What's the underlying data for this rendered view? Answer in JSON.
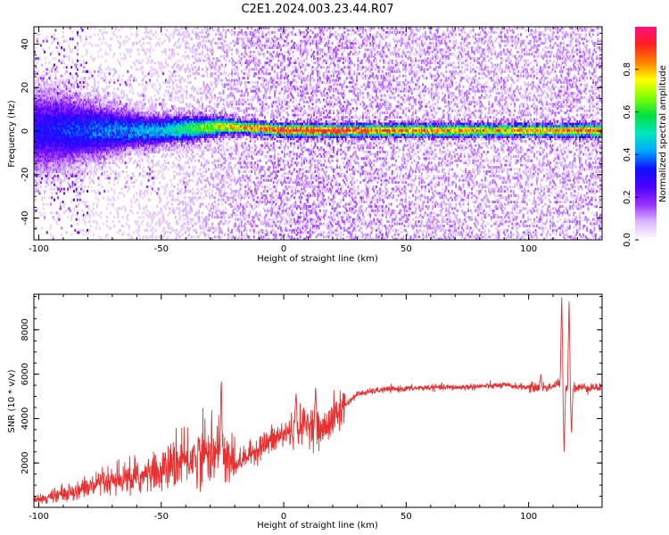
{
  "title": "C2E1.2024.003.23.44.R07",
  "colors": {
    "snr_line": "#e83030",
    "colormap": [
      "#ffffff",
      "#dcb8ff",
      "#9a30ff",
      "#4a00ff",
      "#1010ff",
      "#00a8ff",
      "#00e8c0",
      "#00e040",
      "#80ff00",
      "#ffff00",
      "#ff8000",
      "#ff2020",
      "#ff1080"
    ]
  },
  "chart_data": [
    {
      "type": "heatmap",
      "name": "spectrogram",
      "title": "",
      "xlabel": "Height of straight line (km)",
      "ylabel": "Frequency (Hz)",
      "xlim": [
        -102,
        130
      ],
      "ylim": [
        -50,
        48
      ],
      "xticks": [
        -100,
        -50,
        0,
        50,
        100
      ],
      "yticks": [
        -40,
        -20,
        0,
        20,
        40
      ],
      "colorbar": {
        "label": "Normalized spectral amplitude",
        "range": [
          0,
          1
        ],
        "ticks": [
          0.0,
          0.2,
          0.4,
          0.6,
          0.8
        ]
      },
      "ridge": {
        "description_x": [
          -100,
          -50,
          -25,
          -10,
          0,
          20,
          50,
          100,
          130
        ],
        "peak_amplitude": [
          0.3,
          0.45,
          0.75,
          0.9,
          0.95,
          0.95,
          0.85,
          0.8,
          0.9
        ],
        "frequency_hz": [
          0,
          0,
          2,
          1,
          0,
          0,
          0,
          0,
          0
        ]
      }
    },
    {
      "type": "line",
      "name": "snr",
      "title": "",
      "xlabel": "Height of straight line (km)",
      "ylabel": "SNR (10 * v/v)",
      "xlim": [
        -102,
        130
      ],
      "ylim": [
        0,
        9600
      ],
      "xticks": [
        -100,
        -50,
        0,
        50,
        100
      ],
      "yticks": [
        2000,
        4000,
        6000,
        8000
      ],
      "series": [
        {
          "x": [
            -102,
            -90,
            -80,
            -70,
            -60,
            -50,
            -40,
            -30,
            -25,
            -20,
            -10,
            0,
            10,
            15,
            20,
            25,
            30,
            40,
            50,
            60,
            70,
            80,
            90,
            100,
            108,
            113,
            115,
            118,
            125,
            130
          ],
          "y": [
            300,
            600,
            900,
            1100,
            1300,
            1600,
            2100,
            2500,
            2200,
            1900,
            2700,
            3300,
            3800,
            3400,
            4000,
            4600,
            5100,
            5300,
            5350,
            5400,
            5400,
            5450,
            5500,
            5400,
            5400,
            5600,
            5400,
            5400,
            5400,
            5400
          ],
          "spikes": [
            {
              "x": -25.5,
              "y": 6000
            },
            {
              "x": 5,
              "y": 5200
            },
            {
              "x": 13,
              "y": 5500
            },
            {
              "x": 105,
              "y": 6000
            },
            {
              "x": 113.5,
              "y": 9600
            },
            {
              "x": 114.5,
              "y": 2400
            },
            {
              "x": 116.5,
              "y": 9400
            },
            {
              "x": 117.5,
              "y": 3300
            }
          ]
        }
      ]
    }
  ]
}
